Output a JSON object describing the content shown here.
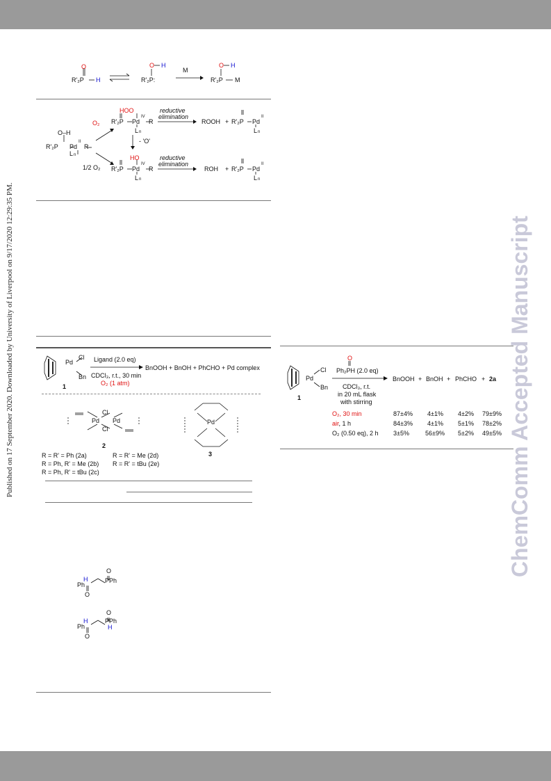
{
  "sidebar": {
    "published": "Published on 17 September 2020. Downloaded by University of Liverpool on 9/17/2020 12:29:35 PM.",
    "watermark": "ChemComm Accepted Manuscript"
  },
  "scheme_tautomer": {
    "left_p": "R'₂P",
    "left_h": "H",
    "left_o": "O",
    "mid_o": "O",
    "mid_h": "H",
    "mid_p": "R'₂P:",
    "arrow_label": "M",
    "right_o": "O",
    "right_h": "H",
    "right_p": "R'₂P",
    "right_m": "M"
  },
  "scheme_pd": {
    "o2": "O₂",
    "half_o2": "1/2 O₂",
    "hoo": "HOO",
    "ho": "HO",
    "loss": "- 'O'",
    "re1": "reductive",
    "re2": "elimination",
    "rooh": "ROOH",
    "roh": "ROH",
    "plus": "+",
    "pd_ii": "Pd",
    "pd_iv": "Pd",
    "sup_ii": "II",
    "sup_iv": "IV",
    "ln": "L",
    "n": "n",
    "r": "R",
    "p_r2": "R'₂P",
    "oh": "O–H"
  },
  "scheme_left": {
    "ligand": "Ligand (2.0 eq)",
    "cond1": "CDCl₃, r.t., 30 min",
    "cond2": "O₂ (1 atm)",
    "products": "BnOOH + BnOH + PhCHO + Pd complex",
    "label_1": "1",
    "cl": "Cl",
    "bn": "Bn",
    "pd": "Pd",
    "label_2": "2",
    "label_3": "3",
    "legend": [
      "R = R' = Ph (2a)",
      "R = R' = Me (2d)",
      "R = Ph, R' = Me (2b)",
      "R = R' = tBu (2e)",
      "R = Ph, R' = tBu (2c)"
    ]
  },
  "scheme_right": {
    "reagent": "Ph₂PH (2.0 eq)",
    "o_top": "O",
    "cond1": "CDCl₃, r.t.",
    "cond2": "in 20 mL flask",
    "cond3": "with stirring",
    "products": [
      "BnOOH",
      "+",
      "BnOH",
      "+",
      "PhCHO",
      "+",
      "2a"
    ],
    "label_1": "1",
    "cl": "Cl",
    "bn": "Bn",
    "pd": "Pd"
  },
  "table": {
    "rows": [
      {
        "cond": "O₂, 30 min",
        "v1": "87±4%",
        "v2": "4±1%",
        "v3": "4±2%",
        "v4": "79±9%"
      },
      {
        "cond": "air, 1 h",
        "v1": "84±3%",
        "v2": "4±1%",
        "v3": "5±1%",
        "v4": "78±2%"
      },
      {
        "cond": "O₂ (0.50 eq), 2 h",
        "v1": "3±5%",
        "v2": "56±9%",
        "v3": "5±2%",
        "v4": "49±5%"
      }
    ]
  },
  "ligands": {
    "a_ph_left": "Ph",
    "a_ph_right": "PPh",
    "h": "H",
    "o": "O"
  },
  "colors": {
    "red": "#e01010",
    "blue": "#1010d0",
    "band": "#9a9a9a",
    "watermark": "#c9c9d9"
  }
}
